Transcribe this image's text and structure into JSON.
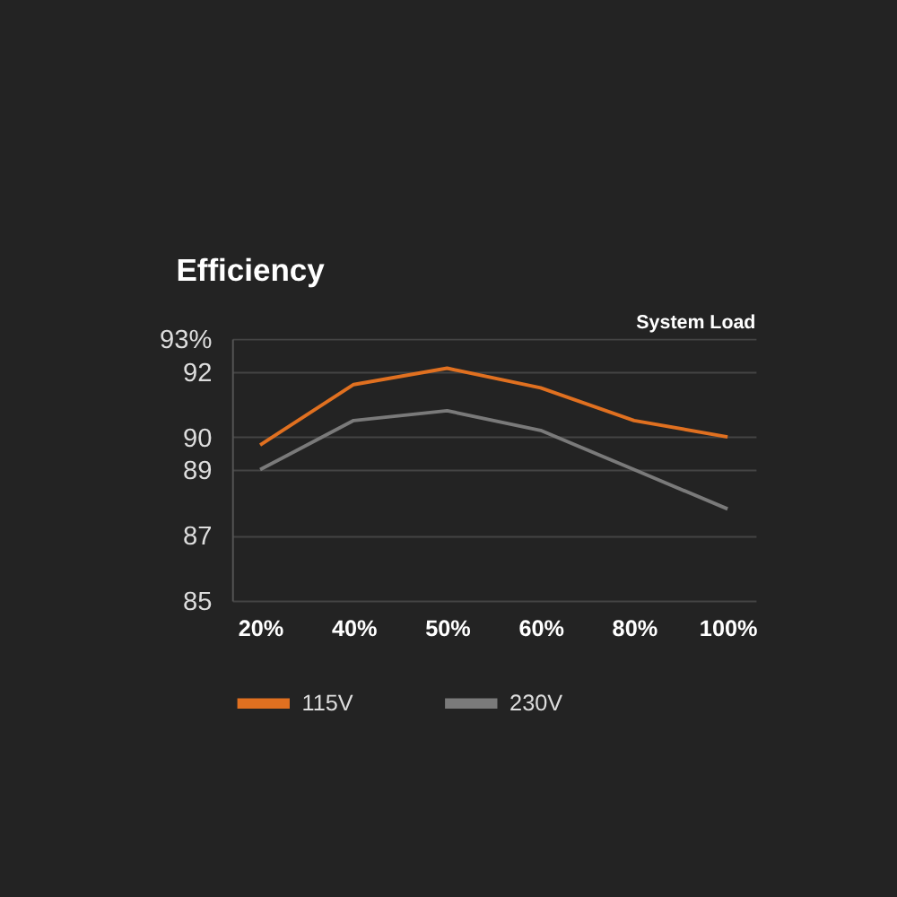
{
  "chart_data": {
    "type": "line",
    "title": "Efficiency",
    "xlabel": "System Load",
    "categories": [
      "20%",
      "40%",
      "50%",
      "60%",
      "80%",
      "100%"
    ],
    "series": [
      {
        "name": "115V",
        "color": "#e07020",
        "values": [
          89.75,
          91.6,
          92.1,
          91.5,
          90.5,
          90.0
        ]
      },
      {
        "name": "230V",
        "color": "#7a7a7a",
        "values": [
          89.0,
          90.5,
          90.8,
          90.2,
          89.0,
          87.8
        ]
      }
    ],
    "ylim": [
      85,
      93
    ],
    "yticks": [
      85,
      87,
      89,
      90,
      92,
      {
        "value": 93,
        "label": "93%"
      }
    ],
    "grid": "y",
    "legend": "bottom",
    "marker": "none",
    "line_style": "solid"
  }
}
